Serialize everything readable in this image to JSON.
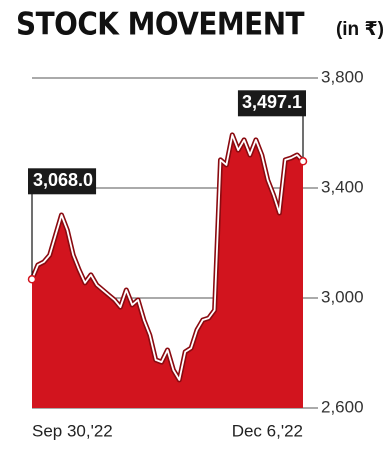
{
  "chart_data": {
    "type": "area",
    "title": "STOCK MOVEMENT",
    "unit": "(in ₹)",
    "categories": [
      "Sep 30,'22",
      null,
      null,
      null,
      null,
      null,
      null,
      null,
      null,
      null,
      null,
      null,
      null,
      null,
      null,
      null,
      null,
      null,
      null,
      null,
      null,
      null,
      null,
      null,
      null,
      null,
      null,
      null,
      null,
      null,
      null,
      null,
      null,
      null,
      null,
      null,
      null,
      null,
      null,
      null,
      null,
      null,
      null,
      null,
      null,
      null,
      "Dec 6,'22"
    ],
    "values": [
      3068.0,
      3120,
      3131,
      3156,
      3229,
      3302,
      3247,
      3156,
      3102,
      3055,
      3084,
      3047,
      3029,
      3011,
      2993,
      2967,
      3029,
      2975,
      2993,
      2920,
      2865,
      2775,
      2767,
      2811,
      2738,
      2702,
      2804,
      2818,
      2884,
      2920,
      2927,
      2956,
      3502,
      3484,
      3593,
      3538,
      3575,
      3520,
      3575,
      3520,
      3429,
      3375,
      3309,
      3502,
      3509,
      3520,
      3497.1
    ],
    "value_labels": [
      "3,068.0",
      null,
      null,
      null,
      null,
      null,
      null,
      null,
      null,
      null,
      null,
      null,
      null,
      null,
      null,
      null,
      null,
      null,
      null,
      null,
      null,
      null,
      null,
      null,
      null,
      null,
      null,
      null,
      null,
      null,
      null,
      null,
      null,
      null,
      null,
      null,
      null,
      null,
      null,
      null,
      null,
      null,
      null,
      null,
      null,
      null,
      "3,497.1"
    ],
    "color": "#d2141e",
    "line_color": "#ffffff",
    "outline_color": "#8a0a10",
    "ylim": [
      2600,
      3800
    ],
    "yticks": [
      {
        "value": 2600,
        "label": "2,600"
      },
      {
        "value": 3000,
        "label": "3,000"
      },
      {
        "value": 3400,
        "label": "3,400"
      },
      {
        "value": 3800,
        "label": "3,800"
      }
    ],
    "grid": true
  }
}
